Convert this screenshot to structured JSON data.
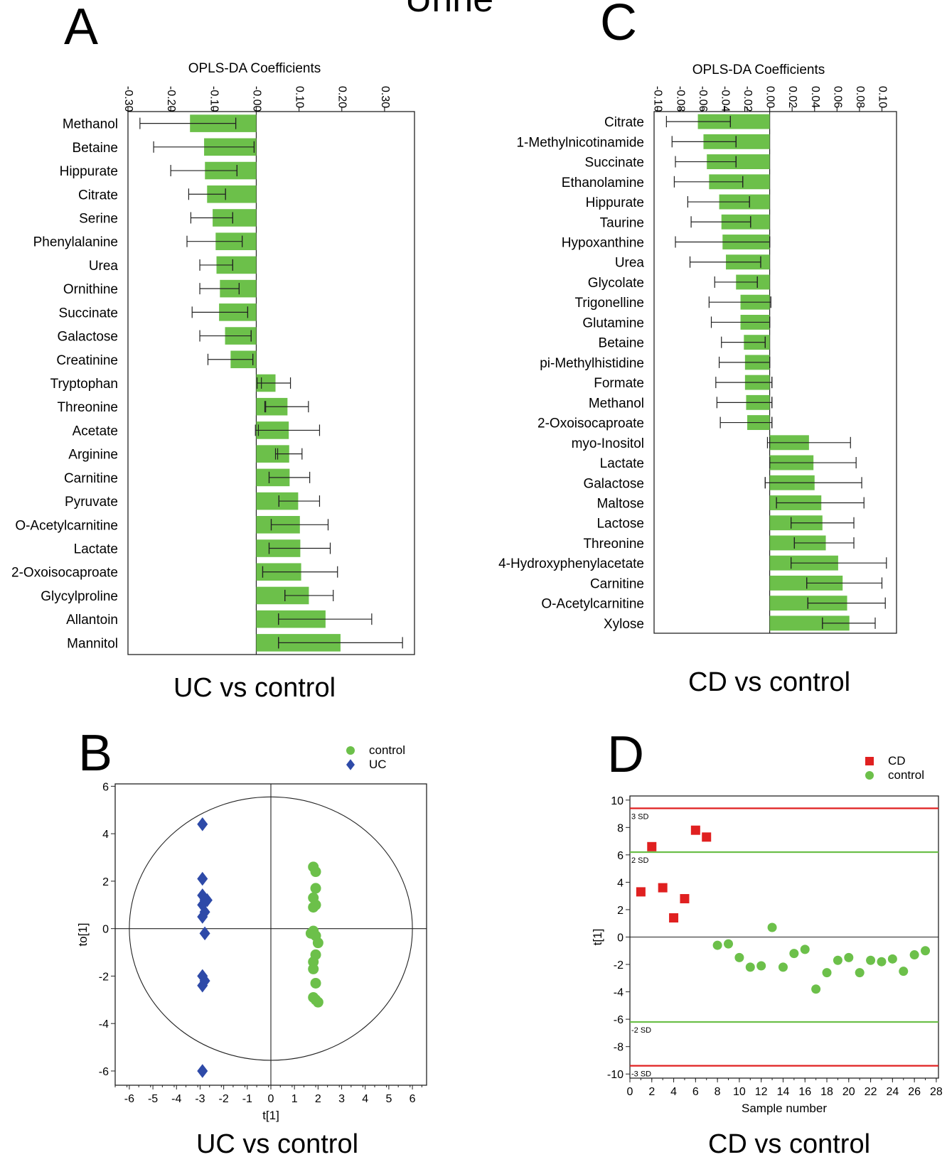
{
  "figure_title": "Urine",
  "chart_data": [
    {
      "panel": "A",
      "type": "bar",
      "orientation": "horizontal",
      "title": "OPLS-DA Coefficients",
      "caption": "UC vs control",
      "ticks": [
        "-0.30",
        "-0.20",
        "-0.10",
        "-0.00",
        "0.10",
        "0.20",
        "0.30"
      ],
      "xlim": [
        -0.3,
        0.37
      ],
      "bar_color": "#6cc04a",
      "categories": [
        "Methanol",
        "Betaine",
        "Hippurate",
        "Citrate",
        "Serine",
        "Phenylalanine",
        "Urea",
        "Ornithine",
        "Succinate",
        "Galactose",
        "Creatinine",
        "Tryptophan",
        "Threonine",
        "Acetate",
        "Arginine",
        "Carnitine",
        "Pyruvate",
        "O-Acetylcarnitine",
        "Lactate",
        "2-Oxoisocaproate",
        "Glycylproline",
        "Allantoin",
        "Mannitol"
      ],
      "values": [
        -0.155,
        -0.122,
        -0.12,
        -0.115,
        -0.102,
        -0.095,
        -0.093,
        -0.085,
        -0.087,
        -0.073,
        -0.06,
        0.045,
        0.073,
        0.076,
        0.077,
        0.078,
        0.098,
        0.102,
        0.103,
        0.105,
        0.123,
        0.162,
        0.197
      ],
      "error_low": [
        -0.272,
        -0.24,
        -0.2,
        -0.158,
        -0.153,
        -0.162,
        -0.132,
        -0.132,
        -0.15,
        -0.132,
        -0.113,
        0.002,
        0.02,
        -0.002,
        0.045,
        0.03,
        0.053,
        0.035,
        0.03,
        0.015,
        0.067,
        0.052,
        0.052
      ],
      "error_high": [
        -0.048,
        -0.005,
        -0.045,
        -0.072,
        -0.055,
        -0.033,
        -0.055,
        -0.04,
        -0.02,
        -0.012,
        -0.008,
        0.08,
        0.122,
        0.148,
        0.107,
        0.125,
        0.148,
        0.168,
        0.173,
        0.19,
        0.18,
        0.27,
        0.342
      ],
      "error_marker": [
        -0.048,
        -0.005,
        -0.045,
        -0.072,
        -0.055,
        -0.033,
        -0.055,
        -0.04,
        -0.02,
        -0.012,
        -0.008,
        0.012,
        0.022,
        0.005,
        0.05,
        0.03,
        0.053,
        0.035,
        0.03,
        0.015,
        0.067,
        0.052,
        0.052
      ]
    },
    {
      "panel": "C",
      "type": "bar",
      "orientation": "horizontal",
      "title": "OPLS-DA Coefficients",
      "caption": "CD vs control",
      "ticks": [
        "-0.10",
        "-0.08",
        "-0.06",
        "-0.04",
        "-0.02",
        "0.00",
        "0.02",
        "0.04",
        "0.06",
        "0.08",
        "0.10"
      ],
      "xlim": [
        -0.103,
        0.113
      ],
      "bar_color": "#6cc04a",
      "categories": [
        "Citrate",
        "1-Methylnicotinamide",
        "Succinate",
        "Ethanolamine",
        "Hippurate",
        "Taurine",
        "Hypoxanthine",
        "Urea",
        "Glycolate",
        "Trigonelline",
        "Glutamine",
        "Betaine",
        "pi-Methylhistidine",
        "Formate",
        "Methanol",
        "2-Oxoisocaproate",
        "myo-Inositol",
        "Lactate",
        "Galactose",
        "Maltose",
        "Lactose",
        "Threonine",
        "4-Hydroxyphenylacetate",
        "Carnitine",
        "O-Acetylcarnitine",
        "Xylose"
      ],
      "values": [
        -0.064,
        -0.059,
        -0.056,
        -0.054,
        -0.045,
        -0.043,
        -0.042,
        -0.039,
        -0.03,
        -0.026,
        -0.026,
        -0.023,
        -0.022,
        -0.022,
        -0.021,
        -0.02,
        0.035,
        0.039,
        0.04,
        0.046,
        0.047,
        0.05,
        0.061,
        0.065,
        0.069,
        0.071
      ],
      "error_low": [
        -0.092,
        -0.087,
        -0.084,
        -0.085,
        -0.073,
        -0.07,
        -0.084,
        -0.071,
        -0.049,
        -0.054,
        -0.052,
        -0.043,
        -0.045,
        -0.048,
        -0.047,
        -0.044,
        -0.002,
        0.0,
        -0.004,
        0.006,
        0.019,
        0.022,
        0.019,
        0.033,
        0.034,
        0.047
      ],
      "error_high": [
        -0.035,
        -0.03,
        -0.03,
        -0.024,
        -0.018,
        -0.017,
        0.0,
        -0.008,
        -0.011,
        0.001,
        0.0,
        -0.004,
        0.0,
        0.002,
        0.002,
        0.002,
        0.072,
        0.077,
        0.082,
        0.084,
        0.075,
        0.075,
        0.104,
        0.1,
        0.103,
        0.094
      ],
      "error_marker": [
        -0.035,
        -0.03,
        -0.03,
        -0.024,
        -0.018,
        -0.017,
        0.0,
        -0.008,
        -0.011,
        0.001,
        0.0,
        -0.004,
        0.0,
        0.002,
        0.002,
        0.002,
        0.0,
        0.0,
        -0.004,
        0.006,
        0.019,
        0.022,
        0.019,
        0.033,
        0.034,
        0.047
      ]
    },
    {
      "panel": "B",
      "type": "scatter",
      "caption": "UC vs control",
      "xlabel": "t[1]",
      "ylabel": "to[1]",
      "xlim": [
        -6.6,
        6.6
      ],
      "ylim": [
        -6.6,
        6.1
      ],
      "xticks": [
        -6,
        -5,
        -4,
        -3,
        -2,
        -1,
        0,
        1,
        2,
        3,
        4,
        5,
        6
      ],
      "yticks": [
        -6,
        -4,
        -2,
        0,
        2,
        4,
        6
      ],
      "ellipse": {
        "rx": 6.0,
        "ry": 5.55
      },
      "series": [
        {
          "name": "control",
          "marker": "circle",
          "color": "#6cc04a",
          "x": [
            1.8,
            1.9,
            1.9,
            1.8,
            1.9,
            1.8,
            1.7,
            1.8,
            1.9,
            2.0,
            1.9,
            1.8,
            1.8,
            1.9,
            1.8,
            1.9,
            2.0
          ],
          "y": [
            2.6,
            2.4,
            1.7,
            1.3,
            1.0,
            0.9,
            -0.2,
            -0.1,
            -0.3,
            -0.6,
            -1.1,
            -1.4,
            -1.7,
            -2.3,
            -2.9,
            -3.0,
            -3.1
          ]
        },
        {
          "name": "UC",
          "marker": "diamond",
          "color": "#2e4aa8",
          "x": [
            -2.9,
            -2.9,
            -2.9,
            -2.8,
            -2.7,
            -2.9,
            -2.8,
            -2.9,
            -2.8,
            -2.9,
            -2.8,
            -2.9,
            -2.9
          ],
          "y": [
            4.4,
            2.1,
            1.4,
            1.2,
            1.2,
            1.0,
            0.7,
            0.5,
            -0.2,
            -2.0,
            -2.2,
            -2.4,
            -6.0
          ]
        }
      ]
    },
    {
      "panel": "D",
      "type": "scatter",
      "caption": "CD vs control",
      "xlabel": "Sample number",
      "ylabel": "t[1]",
      "xlim": [
        0,
        28.2
      ],
      "ylim": [
        -10.3,
        10.3
      ],
      "xticks": [
        0,
        2,
        4,
        6,
        8,
        10,
        12,
        14,
        16,
        18,
        20,
        22,
        24,
        26,
        28
      ],
      "yticks": [
        -10,
        -8,
        -6,
        -4,
        -2,
        0,
        2,
        4,
        6,
        8,
        10
      ],
      "reference_lines": [
        {
          "label": "3 SD",
          "y": 9.4,
          "color": "#e02020"
        },
        {
          "label": "2 SD",
          "y": 6.2,
          "color": "#6cc04a"
        },
        {
          "label": "-2 SD",
          "y": -6.2,
          "color": "#6cc04a"
        },
        {
          "label": "-3 SD",
          "y": -9.4,
          "color": "#e02020"
        }
      ],
      "series": [
        {
          "name": "CD",
          "marker": "square",
          "color": "#e02020",
          "x": [
            1,
            2,
            3,
            4,
            5,
            6,
            7
          ],
          "y": [
            3.3,
            6.6,
            3.6,
            1.4,
            2.8,
            7.8,
            7.3
          ]
        },
        {
          "name": "control",
          "marker": "circle",
          "color": "#6cc04a",
          "x": [
            8,
            9,
            10,
            11,
            12,
            13,
            14,
            15,
            16,
            17,
            18,
            19,
            20,
            21,
            22,
            23,
            24,
            25,
            26,
            27
          ],
          "y": [
            -0.6,
            -0.5,
            -1.5,
            -2.2,
            -2.1,
            0.7,
            -2.2,
            -1.2,
            -0.9,
            -3.8,
            -2.6,
            -1.7,
            -1.5,
            -2.6,
            -1.7,
            -1.8,
            -1.6,
            -2.5,
            -1.3,
            -1.0
          ]
        }
      ]
    }
  ]
}
